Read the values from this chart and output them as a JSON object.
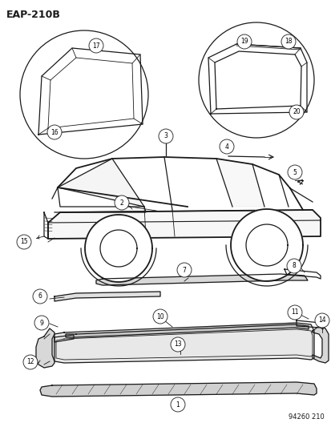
{
  "title": "EAP-210B",
  "footer": "94260 210",
  "bg_color": "#ffffff",
  "line_color": "#1a1a1a",
  "fig_width": 4.14,
  "fig_height": 5.33,
  "dpi": 100
}
